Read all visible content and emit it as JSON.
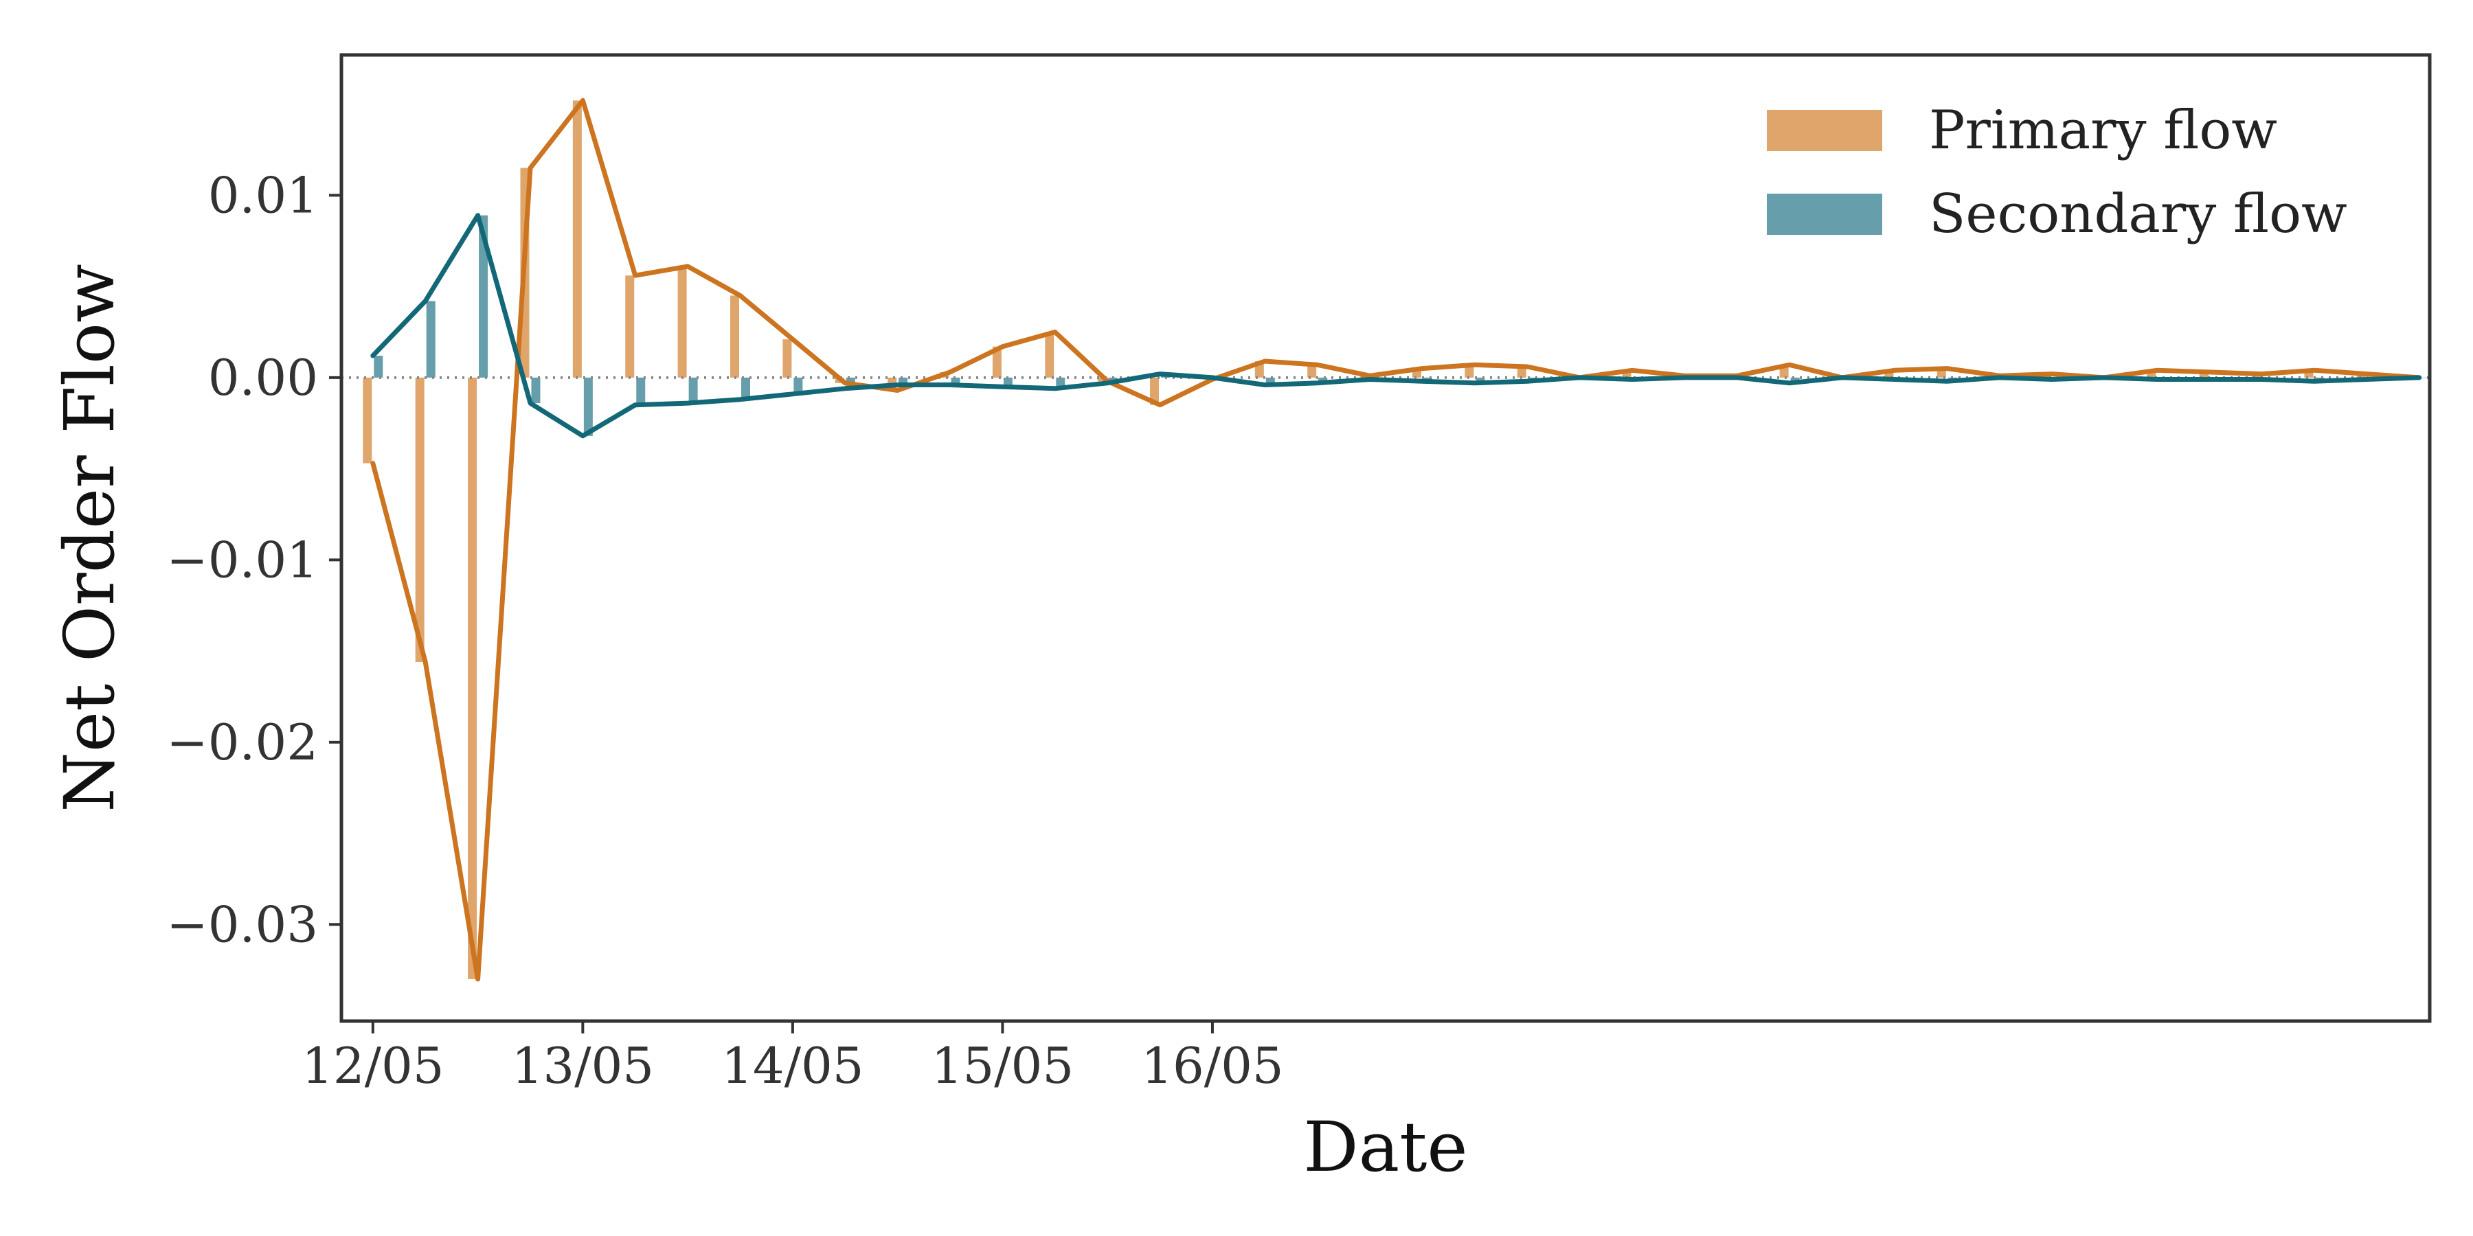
{
  "chart_data": {
    "type": "bar",
    "title": "",
    "xlabel": "Date",
    "ylabel": "Net Order Flow",
    "x_tick_labels": [
      "12/05",
      "13/05",
      "14/05",
      "15/05",
      "16/05"
    ],
    "y_ticks": [
      0.01,
      0.0,
      -0.01,
      -0.02,
      -0.03
    ],
    "y_tick_labels": [
      "0.01",
      "0.00",
      "−0.01",
      "−0.02",
      "−0.03"
    ],
    "xlim": [
      -0.15,
      9.8
    ],
    "ylim": [
      -0.0353,
      0.0177
    ],
    "grid": false,
    "zero_line": true,
    "legend_position": "top-right",
    "x_unit": "days from 12/05",
    "x": [
      0.0,
      0.25,
      0.5,
      0.75,
      1.0,
      1.25,
      1.5,
      1.75,
      2.0,
      2.25,
      2.5,
      2.75,
      3.0,
      3.25,
      3.5,
      3.75,
      4.0,
      4.25,
      4.5,
      4.75,
      5.0,
      5.25,
      5.5,
      5.75,
      6.0,
      6.25,
      6.5,
      6.75,
      7.0,
      7.25,
      7.5,
      7.75,
      8.0,
      8.25,
      8.5,
      8.75,
      9.0,
      9.25,
      9.5,
      9.75
    ],
    "series": [
      {
        "name": "Primary flow",
        "bar_color": "#E0A56B",
        "line_color": "#CC741F",
        "values": [
          -0.0047,
          -0.0156,
          -0.033,
          0.0115,
          0.0152,
          0.0056,
          0.0061,
          0.0045,
          0.0021,
          -0.0003,
          -0.0007,
          0.0003,
          0.0017,
          0.0025,
          -0.0002,
          -0.0015,
          -0.0001,
          0.0009,
          0.0007,
          0.0001,
          0.0005,
          0.0007,
          0.0006,
          0.0,
          0.0004,
          0.0001,
          0.0001,
          0.0007,
          0.0,
          0.0004,
          0.0005,
          0.0001,
          0.0002,
          0.0,
          0.0004,
          0.0003,
          0.0002,
          0.0004,
          0.0002,
          0.0
        ]
      },
      {
        "name": "Secondary flow",
        "bar_color": "#669FAB",
        "line_color": "#136878",
        "values": [
          0.0012,
          0.0042,
          0.0089,
          -0.0014,
          -0.0032,
          -0.0015,
          -0.0014,
          -0.0012,
          -0.0009,
          -0.0006,
          -0.0004,
          -0.0004,
          -0.0005,
          -0.0006,
          -0.0003,
          0.0002,
          0.0,
          -0.0004,
          -0.0003,
          -0.0001,
          -0.0002,
          -0.0003,
          -0.0002,
          0.0,
          -0.0001,
          0.0,
          0.0,
          -0.0003,
          0.0,
          -0.0001,
          -0.0002,
          0.0,
          -0.0001,
          0.0,
          -0.0001,
          -0.0001,
          -0.0001,
          -0.0002,
          -0.0001,
          0.0
        ]
      }
    ]
  }
}
